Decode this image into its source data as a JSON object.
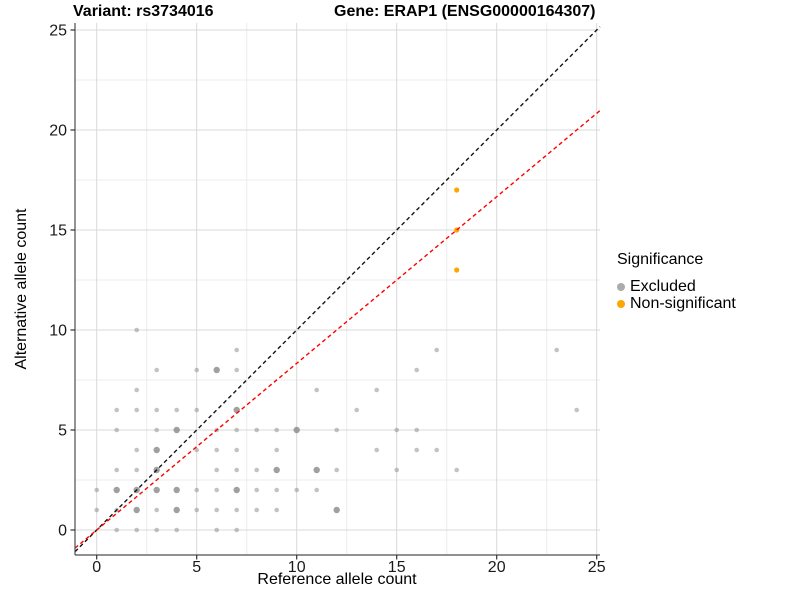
{
  "titles": {
    "variant": "Variant: rs3734016",
    "gene": "Gene: ERAP1 (ENSG00000164307)"
  },
  "chart_data": {
    "type": "scatter",
    "xlabel": "Reference allele count",
    "ylabel": "Alternative allele count",
    "xlim": [
      -1.1,
      25.2
    ],
    "ylim": [
      -1.25,
      25.35
    ],
    "x_ticks": [
      0,
      5,
      10,
      15,
      20,
      25
    ],
    "y_ticks": [
      0,
      5,
      10,
      15,
      20,
      25
    ],
    "x_minor": [
      2.5,
      7.5,
      12.5,
      17.5,
      22.5
    ],
    "y_minor": [
      2.5,
      7.5,
      12.5,
      17.5,
      22.5
    ],
    "grid": true,
    "legend": {
      "title": "Significance",
      "position": "right",
      "entries": [
        {
          "label": "Excluded",
          "color": "#ababab"
        },
        {
          "label": "Non-significant",
          "color": "#ffa500"
        }
      ]
    },
    "series": [
      {
        "name": "Excluded",
        "color": "#888888",
        "points": [
          [
            1,
            0,
            1
          ],
          [
            2,
            0,
            1
          ],
          [
            3,
            0,
            1
          ],
          [
            4,
            0,
            1
          ],
          [
            6,
            0,
            1
          ],
          [
            7,
            0,
            1
          ],
          [
            0,
            1,
            1
          ],
          [
            1,
            1,
            1
          ],
          [
            2,
            1,
            2
          ],
          [
            3,
            1,
            1
          ],
          [
            4,
            1,
            2
          ],
          [
            5,
            1,
            1
          ],
          [
            6,
            1,
            1
          ],
          [
            7,
            1,
            1
          ],
          [
            8,
            1,
            1
          ],
          [
            9,
            1,
            1
          ],
          [
            12,
            1,
            2
          ],
          [
            0,
            2,
            1
          ],
          [
            1,
            2,
            2
          ],
          [
            2,
            2,
            2
          ],
          [
            3,
            2,
            2
          ],
          [
            4,
            2,
            2
          ],
          [
            5,
            2,
            1
          ],
          [
            6,
            2,
            1
          ],
          [
            7,
            2,
            2
          ],
          [
            8,
            2,
            1
          ],
          [
            9,
            2,
            1
          ],
          [
            10,
            2,
            1
          ],
          [
            11,
            2,
            1
          ],
          [
            1,
            3,
            1
          ],
          [
            2,
            3,
            1
          ],
          [
            3,
            3,
            2
          ],
          [
            6,
            3,
            1
          ],
          [
            7,
            3,
            1
          ],
          [
            8,
            3,
            1
          ],
          [
            9,
            3,
            2
          ],
          [
            11,
            3,
            2
          ],
          [
            12,
            3,
            1
          ],
          [
            15,
            3,
            1
          ],
          [
            18,
            3,
            1
          ],
          [
            2,
            4,
            1
          ],
          [
            3,
            4,
            2
          ],
          [
            5,
            4,
            1
          ],
          [
            6,
            4,
            1
          ],
          [
            7,
            4,
            1
          ],
          [
            9,
            4,
            1
          ],
          [
            14,
            4,
            1
          ],
          [
            16,
            4,
            1
          ],
          [
            17,
            4,
            1
          ],
          [
            1,
            5,
            1
          ],
          [
            3,
            5,
            1
          ],
          [
            4,
            5,
            2
          ],
          [
            6,
            5,
            1
          ],
          [
            7,
            5,
            1
          ],
          [
            8,
            5,
            1
          ],
          [
            9,
            5,
            1
          ],
          [
            10,
            5,
            2
          ],
          [
            12,
            5,
            1
          ],
          [
            15,
            5,
            1
          ],
          [
            16,
            5,
            1
          ],
          [
            1,
            6,
            1
          ],
          [
            2,
            6,
            1
          ],
          [
            3,
            6,
            1
          ],
          [
            4,
            6,
            1
          ],
          [
            5,
            6,
            1
          ],
          [
            7,
            6,
            2
          ],
          [
            13,
            6,
            1
          ],
          [
            24,
            6,
            1
          ],
          [
            2,
            7,
            1
          ],
          [
            11,
            7,
            1
          ],
          [
            14,
            7,
            1
          ],
          [
            3,
            8,
            1
          ],
          [
            5,
            8,
            1
          ],
          [
            6,
            8,
            2
          ],
          [
            7,
            8,
            1
          ],
          [
            16,
            8,
            1
          ],
          [
            7,
            9,
            1
          ],
          [
            17,
            9,
            1
          ],
          [
            23,
            9,
            1
          ],
          [
            2,
            10,
            1
          ]
        ]
      },
      {
        "name": "Non-significant",
        "color": "#ffa500",
        "points": [
          [
            18,
            13,
            1
          ],
          [
            18,
            15,
            1
          ],
          [
            18,
            17,
            1
          ]
        ]
      }
    ],
    "lines": [
      {
        "name": "identity-line",
        "slope": 1,
        "intercept": 0,
        "color": "#141414"
      },
      {
        "name": "expected-ratio-line",
        "slope": 0.8333,
        "intercept": 0,
        "color": "#ff0000"
      }
    ]
  },
  "style": {
    "grid_major": "#d9d9d9",
    "grid_minor": "#ececec",
    "axis_line": "#4d4d4d",
    "tick_color": "#333333",
    "text_color": "#1a1a1a"
  }
}
